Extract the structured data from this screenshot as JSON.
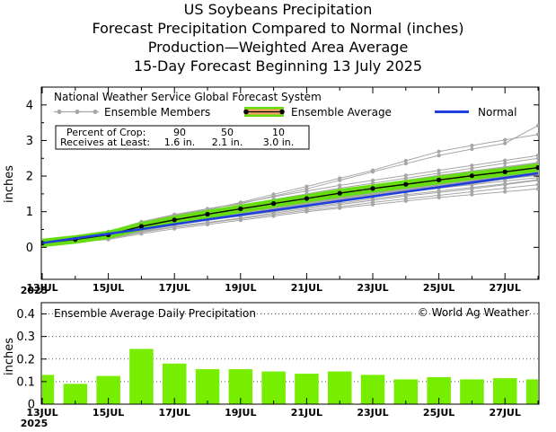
{
  "titles": [
    "US Soybeans Precipitation",
    "Forecast Precipitation Compared to Normal (inches)",
    "Production—Weighted Area Average",
    "15-Day Forecast Beginning 13 July 2025"
  ],
  "colors": {
    "members": "#a6a6a6",
    "ensemble_fill": "#66dd11",
    "ensemble_line": "#000000",
    "ensemble_legend_fill": "#f4a460",
    "normal": "#1f3fdc",
    "daily_bar": "#77ee00"
  },
  "chart_data": [
    {
      "type": "line",
      "title": "National Weather Service Global Forecast System",
      "ylabel": "inches",
      "xlabel": "",
      "ylim": [
        -0.9,
        4.5
      ],
      "yticks": [
        "0",
        "1",
        "2",
        "3",
        "4"
      ],
      "xticks": [
        "13JUL",
        "15JUL",
        "17JUL",
        "19JUL",
        "21JUL",
        "23JUL",
        "25JUL",
        "27JUL"
      ],
      "xaxis_year": "2025",
      "grid": false,
      "legend_placement": "top-left",
      "legend": {
        "members": "Ensemble Members",
        "average": "Ensemble Average",
        "normal": "Normal"
      },
      "x": [
        "13JUL",
        "14JUL",
        "15JUL",
        "16JUL",
        "17JUL",
        "18JUL",
        "19JUL",
        "20JUL",
        "21JUL",
        "22JUL",
        "23JUL",
        "24JUL",
        "25JUL",
        "26JUL",
        "27JUL",
        "28JUL"
      ],
      "series": [
        {
          "name": "Ensemble Average",
          "values": [
            0.12,
            0.22,
            0.35,
            0.59,
            0.77,
            0.93,
            1.08,
            1.23,
            1.37,
            1.52,
            1.65,
            1.77,
            1.89,
            2.01,
            2.12,
            2.24
          ]
        },
        {
          "name": "Normal",
          "values": [
            0.12,
            0.25,
            0.38,
            0.51,
            0.65,
            0.78,
            0.91,
            1.04,
            1.17,
            1.3,
            1.43,
            1.56,
            1.69,
            1.82,
            1.95,
            2.08
          ]
        }
      ],
      "members": [
        [
          0.12,
          0.22,
          0.35,
          0.62,
          0.88,
          1.08,
          1.22,
          1.44,
          1.64,
          1.88,
          2.12,
          2.35,
          2.58,
          2.76,
          2.92,
          3.42
        ],
        [
          0.12,
          0.24,
          0.4,
          0.7,
          0.9,
          1.05,
          1.26,
          1.49,
          1.71,
          1.94,
          2.16,
          2.43,
          2.69,
          2.86,
          3.02,
          3.17
        ],
        [
          0.12,
          0.2,
          0.32,
          0.56,
          0.74,
          0.88,
          1.02,
          1.18,
          1.32,
          1.48,
          1.62,
          1.76,
          1.88,
          2.02,
          2.18,
          2.38
        ],
        [
          0.12,
          0.18,
          0.28,
          0.48,
          0.64,
          0.78,
          0.9,
          1.04,
          1.16,
          1.28,
          1.42,
          1.56,
          1.66,
          1.78,
          1.92,
          2.02
        ],
        [
          0.12,
          0.21,
          0.33,
          0.58,
          0.76,
          0.92,
          1.06,
          1.2,
          1.36,
          1.5,
          1.62,
          1.74,
          1.86,
          2.0,
          2.12,
          2.22
        ],
        [
          0.12,
          0.26,
          0.42,
          0.68,
          0.86,
          0.98,
          1.14,
          1.3,
          1.44,
          1.6,
          1.74,
          1.88,
          2.02,
          2.14,
          2.26,
          2.38
        ],
        [
          0.12,
          0.19,
          0.3,
          0.5,
          0.66,
          0.8,
          0.92,
          1.06,
          1.2,
          1.34,
          1.46,
          1.58,
          1.7,
          1.8,
          1.92,
          2.04
        ],
        [
          0.12,
          0.23,
          0.36,
          0.6,
          0.8,
          0.96,
          1.1,
          1.26,
          1.42,
          1.56,
          1.7,
          1.84,
          1.96,
          2.1,
          2.22,
          2.34
        ],
        [
          0.12,
          0.17,
          0.26,
          0.44,
          0.58,
          0.7,
          0.82,
          0.96,
          1.08,
          1.2,
          1.32,
          1.44,
          1.54,
          1.64,
          1.76,
          1.88
        ],
        [
          0.12,
          0.22,
          0.34,
          0.56,
          0.72,
          0.86,
          1.0,
          1.14,
          1.28,
          1.42,
          1.56,
          1.7,
          1.82,
          1.94,
          2.06,
          2.16
        ],
        [
          0.12,
          0.25,
          0.39,
          0.64,
          0.84,
          1.0,
          1.18,
          1.34,
          1.5,
          1.66,
          1.8,
          1.94,
          2.08,
          2.22,
          2.36,
          2.5
        ],
        [
          0.12,
          0.16,
          0.24,
          0.42,
          0.56,
          0.68,
          0.8,
          0.92,
          1.04,
          1.14,
          1.26,
          1.36,
          1.46,
          1.56,
          1.66,
          1.76
        ],
        [
          0.12,
          0.2,
          0.31,
          0.54,
          0.7,
          0.84,
          0.98,
          1.12,
          1.26,
          1.38,
          1.52,
          1.64,
          1.76,
          1.88,
          1.98,
          2.1
        ],
        [
          0.12,
          0.24,
          0.37,
          0.62,
          0.82,
          0.98,
          1.12,
          1.28,
          1.44,
          1.58,
          1.72,
          1.86,
          2.0,
          2.12,
          2.24,
          2.36
        ],
        [
          0.12,
          0.15,
          0.22,
          0.38,
          0.52,
          0.64,
          0.76,
          0.88,
          1.0,
          1.1,
          1.2,
          1.3,
          1.4,
          1.48,
          1.56,
          1.64
        ],
        [
          0.12,
          0.21,
          0.34,
          0.58,
          0.78,
          0.94,
          1.08,
          1.22,
          1.38,
          1.52,
          1.66,
          1.8,
          1.94,
          2.06,
          2.18,
          2.3
        ],
        [
          0.12,
          0.27,
          0.44,
          0.72,
          0.92,
          1.08,
          1.24,
          1.42,
          1.58,
          1.74,
          1.88,
          2.02,
          2.16,
          2.3,
          2.44,
          2.58
        ],
        [
          0.12,
          0.18,
          0.29,
          0.5,
          0.66,
          0.82,
          0.96,
          1.1,
          1.24,
          1.36,
          1.5,
          1.62,
          1.74,
          1.86,
          1.98,
          2.1
        ],
        [
          0.12,
          0.22,
          0.36,
          0.6,
          0.78,
          0.94,
          1.1,
          1.26,
          1.4,
          1.54,
          1.68,
          1.8,
          1.92,
          2.04,
          2.16,
          2.28
        ],
        [
          0.12,
          0.19,
          0.3,
          0.52,
          0.68,
          0.82,
          0.94,
          1.08,
          1.22,
          1.36,
          1.48,
          1.6,
          1.72,
          1.84,
          1.94,
          2.06
        ],
        [
          0.12,
          0.23,
          0.38,
          0.62,
          0.8,
          0.96,
          1.12,
          1.28,
          1.42,
          1.56,
          1.7,
          1.84,
          1.98,
          2.1,
          2.22,
          2.32
        ],
        [
          0.12,
          0.2,
          0.32,
          0.54,
          0.72,
          0.86,
          1.0,
          1.14,
          1.28,
          1.4,
          1.52,
          1.64,
          1.76,
          1.86,
          1.96,
          2.08
        ],
        [
          0.12,
          0.24,
          0.36,
          0.58,
          0.76,
          0.9,
          1.04,
          1.18,
          1.32,
          1.46,
          1.6,
          1.72,
          1.84,
          1.96,
          2.08,
          2.2
        ],
        [
          0.12,
          0.26,
          0.4,
          0.66,
          0.84,
          1.0,
          1.16,
          1.32,
          1.46,
          1.6,
          1.72,
          1.84,
          1.96,
          2.08,
          2.2,
          2.3
        ],
        [
          0.12,
          0.17,
          0.27,
          0.46,
          0.62,
          0.76,
          0.88,
          1.0,
          1.12,
          1.24,
          1.36,
          1.48,
          1.58,
          1.68,
          1.78,
          1.9
        ],
        [
          0.12,
          0.21,
          0.33,
          0.56,
          0.74,
          0.9,
          1.04,
          1.18,
          1.3,
          1.44,
          1.58,
          1.7,
          1.82,
          1.94,
          2.04,
          2.14
        ],
        [
          0.12,
          0.22,
          0.35,
          0.6,
          0.78,
          0.94,
          1.08,
          1.22,
          1.36,
          1.5,
          1.62,
          1.74,
          1.86,
          1.98,
          2.1,
          2.18
        ],
        [
          0.12,
          0.2,
          0.31,
          0.52,
          0.7,
          0.86,
          1.02,
          1.16,
          1.3,
          1.44,
          1.56,
          1.66,
          1.78,
          1.9,
          2.0,
          2.12
        ],
        [
          0.12,
          0.25,
          0.4,
          0.64,
          0.82,
          0.98,
          1.14,
          1.3,
          1.44,
          1.58,
          1.7,
          1.82,
          1.94,
          2.04,
          2.14,
          2.26
        ],
        [
          0.12,
          0.19,
          0.29,
          0.48,
          0.64,
          0.78,
          0.92,
          1.04,
          1.18,
          1.3,
          1.42,
          1.54,
          1.66,
          1.76,
          1.86,
          1.96
        ]
      ],
      "annotations": {
        "percent_row_label": "Percent of Crop:",
        "receives_row_label": "Receives at Least:",
        "percents": [
          "90",
          "50",
          "10"
        ],
        "amounts": [
          "1.6 in.",
          "2.1 in.",
          "3.0 in."
        ]
      }
    },
    {
      "type": "bar",
      "title": "Ensemble Average Daily Precipitation",
      "credit": "© World Ag Weather",
      "ylabel": "inches",
      "xlabel": "",
      "ylim": [
        0,
        0.45
      ],
      "yticks": [
        "0",
        "0.1",
        "0.2",
        "0.3",
        "0.4"
      ],
      "xticks": [
        "13JUL",
        "15JUL",
        "17JUL",
        "19JUL",
        "21JUL",
        "23JUL",
        "25JUL",
        "27JUL"
      ],
      "xaxis_year": "2025",
      "grid": true,
      "categories": [
        "13JUL",
        "14JUL",
        "15JUL",
        "16JUL",
        "17JUL",
        "18JUL",
        "19JUL",
        "20JUL",
        "21JUL",
        "22JUL",
        "23JUL",
        "24JUL",
        "25JUL",
        "26JUL",
        "27JUL",
        "28JUL"
      ],
      "values": [
        0.13,
        0.09,
        0.125,
        0.245,
        0.18,
        0.155,
        0.155,
        0.145,
        0.135,
        0.145,
        0.13,
        0.11,
        0.12,
        0.11,
        0.115,
        0.11
      ]
    }
  ]
}
